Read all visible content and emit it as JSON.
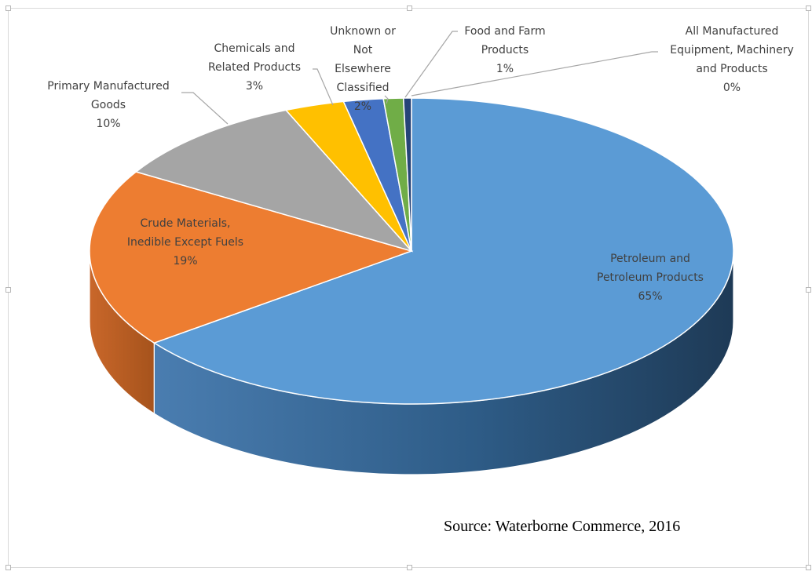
{
  "chart_data": {
    "type": "pie",
    "style": "3d",
    "slices": [
      {
        "label_lines": [
          "Petroleum and",
          "Petroleum Products"
        ],
        "percent_text": "65%",
        "value": 65,
        "color": "#5B9BD5",
        "side_color": "#2E5C87"
      },
      {
        "label_lines": [
          "Crude Materials,",
          "Inedible Except Fuels"
        ],
        "percent_text": "19%",
        "value": 19,
        "color": "#ED7D31",
        "side_color": "#B85E1F"
      },
      {
        "label_lines": [
          "Primary Manufactured",
          "Goods"
        ],
        "percent_text": "10%",
        "value": 10,
        "color": "#A5A5A5",
        "side_color": "#7A7A7A"
      },
      {
        "label_lines": [
          "Chemicals and",
          "Related Products"
        ],
        "percent_text": "3%",
        "value": 3,
        "color": "#FFC000",
        "side_color": "#BF9000"
      },
      {
        "label_lines": [
          "Unknown or",
          "Not",
          "Elsewhere",
          "Classified"
        ],
        "percent_text": "2%",
        "value": 2,
        "color": "#4472C4",
        "side_color": "#2F5597"
      },
      {
        "label_lines": [
          "Food and Farm",
          "Products"
        ],
        "percent_text": "1%",
        "value": 1,
        "color": "#70AD47",
        "side_color": "#4E7A32"
      },
      {
        "label_lines": [
          "All Manufactured",
          "Equipment, Machinery",
          "and Products"
        ],
        "percent_text": "0%",
        "value": 0.4,
        "color": "#264478",
        "side_color": "#1A2F54"
      }
    ],
    "legend": "none",
    "data_labels": "outside-end with leader lines"
  },
  "source_note": "Source: Waterborne Commerce, 2016"
}
